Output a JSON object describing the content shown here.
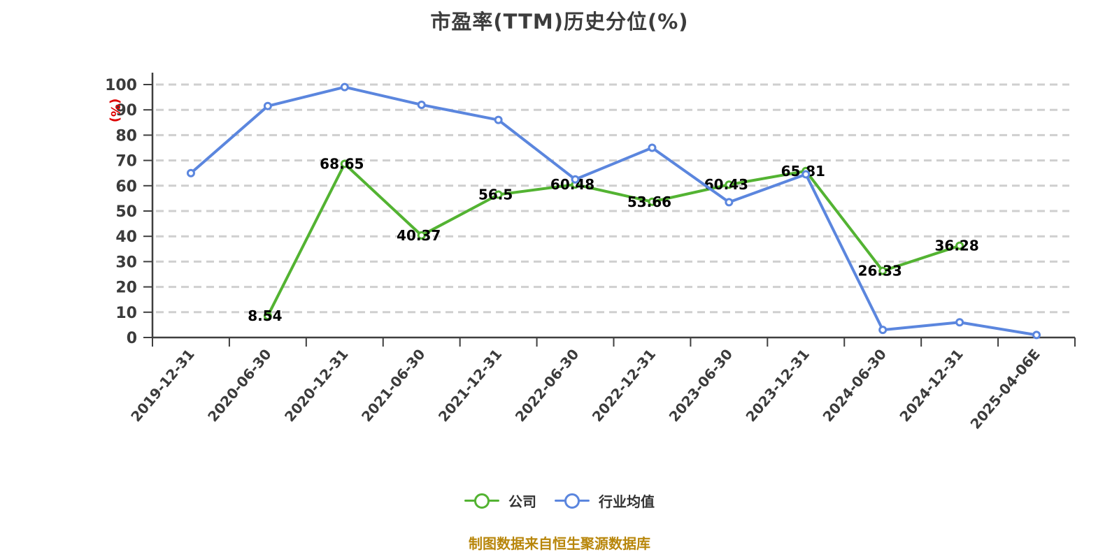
{
  "page": {
    "footer_note": "制图数据来自恒生聚源数据库"
  },
  "chart_data": {
    "type": "line",
    "title": "市盈率(TTM)历史分位(%)",
    "xlabel": "",
    "ylabel": "(%)",
    "ylim": [
      0,
      100
    ],
    "ytick_step": 10,
    "x_tick_rotation": -50,
    "grid": "horizontal-dashed",
    "legend_position": "bottom",
    "categories": [
      "2019-12-31",
      "2020-06-30",
      "2020-12-31",
      "2021-06-30",
      "2021-12-31",
      "2022-06-30",
      "2022-12-31",
      "2023-06-30",
      "2023-12-31",
      "2024-06-30",
      "2024-12-31",
      "2025-04-06E"
    ],
    "series": [
      {
        "name": "公司",
        "color": "#53b332",
        "show_labels": true,
        "values": [
          null,
          8.54,
          68.65,
          40.37,
          56.5,
          60.48,
          53.66,
          60.43,
          65.81,
          26.33,
          36.28,
          null
        ]
      },
      {
        "name": "行业均值",
        "color": "#5b86de",
        "show_labels": false,
        "values": [
          65,
          91.5,
          99,
          92,
          86,
          62.5,
          75,
          53.5,
          64.5,
          3,
          6,
          1
        ]
      }
    ],
    "colors": {
      "title": "#3c3c3c",
      "tick_label": "#3b3b3b",
      "axis": "#3f3f3f",
      "grid": "#cfcfcf",
      "ylabel_color": "#dd0000",
      "data_label": "#000000",
      "footer": "#b8860b",
      "legend_text": "#333333",
      "background": "#ffffff"
    }
  }
}
